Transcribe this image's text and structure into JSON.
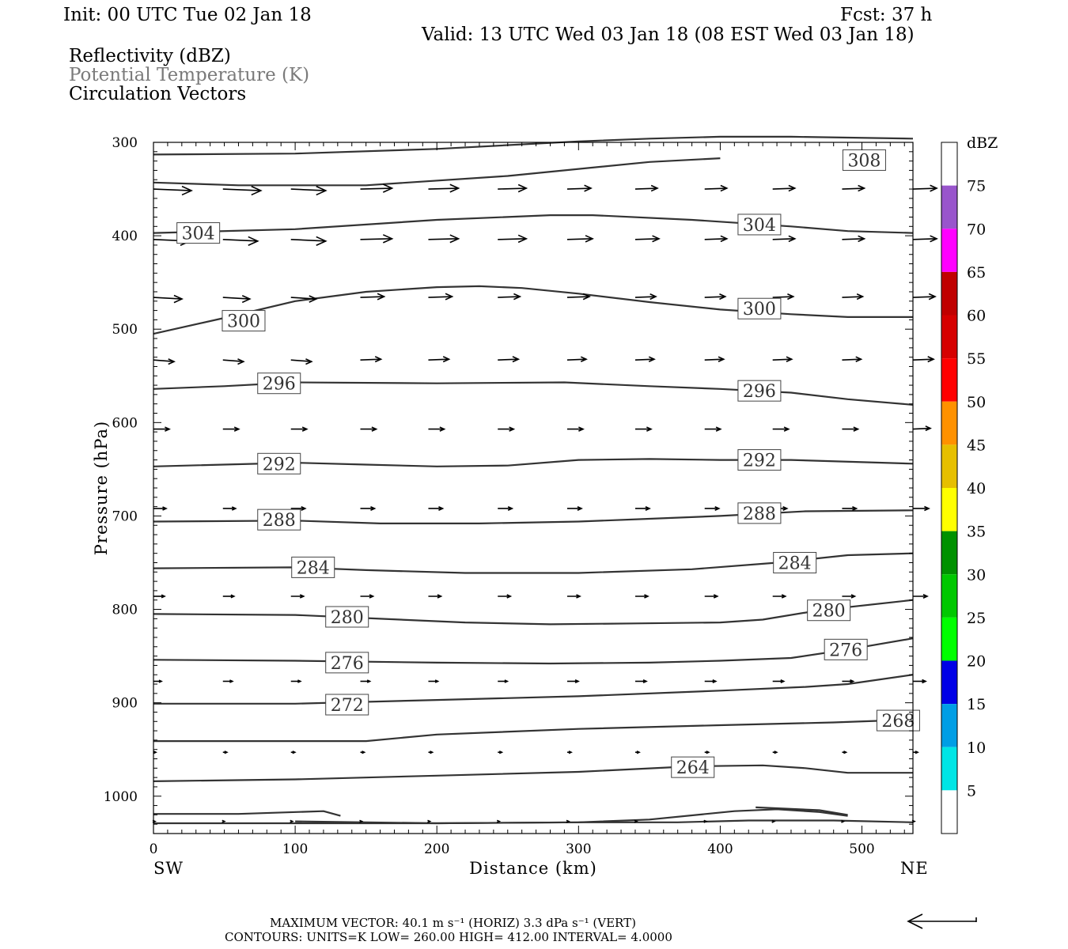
{
  "header": {
    "init": "Init: 00 UTC Tue 02 Jan 18",
    "fcst": "Fcst:   37 h",
    "valid": "Valid: 13 UTC Wed 03 Jan 18 (08 EST Wed 03 Jan 18)",
    "fields": [
      {
        "label": "Reflectivity (dBZ)",
        "color": "#000000"
      },
      {
        "label": "Potential Temperature (K)",
        "color": "#7a7a7a"
      },
      {
        "label": "Circulation Vectors",
        "color": "#000000"
      }
    ]
  },
  "chart_data": {
    "type": "contour cross-section",
    "x_axis": {
      "label": "Distance (km)",
      "range": [
        0,
        536
      ],
      "ticks": [
        0,
        100,
        200,
        300,
        400,
        500
      ],
      "left_end": "SW",
      "right_end": "NE"
    },
    "y_axis": {
      "label": "Pressure (hPa)",
      "range": [
        300,
        1040
      ],
      "inverted": true,
      "ticks": [
        300,
        400,
        500,
        600,
        700,
        800,
        900,
        1000
      ]
    },
    "theta_contours": [
      {
        "label": "308",
        "label_at": [
          486,
          319
        ],
        "pts": [
          [
            0,
            313
          ],
          [
            100,
            312
          ],
          [
            200,
            307
          ],
          [
            300,
            299
          ],
          [
            350,
            296
          ],
          [
            400,
            294
          ],
          [
            450,
            294
          ],
          [
            536,
            296
          ]
        ]
      },
      {
        "label": null,
        "pts": [
          [
            0,
            343
          ],
          [
            60,
            346
          ],
          [
            150,
            346
          ],
          [
            250,
            336
          ],
          [
            350,
            321
          ],
          [
            400,
            317
          ]
        ]
      },
      {
        "label": "304",
        "label_at": [
          16,
          397
        ],
        "pts": [
          [
            0,
            397
          ],
          [
            100,
            393
          ],
          [
            200,
            383
          ],
          [
            280,
            378
          ],
          [
            310,
            378
          ],
          [
            380,
            383
          ],
          [
            450,
            390
          ],
          [
            490,
            395
          ],
          [
            536,
            397
          ]
        ]
      },
      {
        "label": "304",
        "label_at": [
          412,
          388
        ]
      },
      {
        "label": "300",
        "label_at": [
          48,
          491
        ],
        "pts": [
          [
            0,
            505
          ],
          [
            50,
            488
          ],
          [
            100,
            470
          ],
          [
            150,
            460
          ],
          [
            200,
            455
          ],
          [
            230,
            454
          ],
          [
            260,
            456
          ],
          [
            300,
            462
          ],
          [
            350,
            471
          ],
          [
            400,
            479
          ],
          [
            450,
            484
          ],
          [
            490,
            487
          ],
          [
            536,
            487
          ]
        ]
      },
      {
        "label": "300",
        "label_at": [
          412,
          478
        ]
      },
      {
        "label": "296",
        "label_at": [
          73,
          558
        ],
        "pts": [
          [
            0,
            564
          ],
          [
            50,
            561
          ],
          [
            100,
            557
          ],
          [
            200,
            558
          ],
          [
            290,
            557
          ],
          [
            350,
            561
          ],
          [
            400,
            564
          ],
          [
            450,
            568
          ],
          [
            490,
            575
          ],
          [
            536,
            581
          ]
        ]
      },
      {
        "label": "296",
        "label_at": [
          412,
          566
        ]
      },
      {
        "label": "292",
        "label_at": [
          73,
          644
        ],
        "pts": [
          [
            0,
            647
          ],
          [
            100,
            643
          ],
          [
            150,
            645
          ],
          [
            200,
            647
          ],
          [
            250,
            646
          ],
          [
            300,
            640
          ],
          [
            350,
            639
          ],
          [
            400,
            640
          ],
          [
            450,
            640
          ],
          [
            536,
            644
          ]
        ]
      },
      {
        "label": "292",
        "label_at": [
          412,
          640
        ]
      },
      {
        "label": "288",
        "label_at": [
          73,
          704
        ],
        "pts": [
          [
            0,
            706
          ],
          [
            100,
            705
          ],
          [
            160,
            708
          ],
          [
            230,
            708
          ],
          [
            300,
            706
          ],
          [
            350,
            703
          ],
          [
            400,
            700
          ],
          [
            460,
            695
          ],
          [
            536,
            694
          ]
        ]
      },
      {
        "label": "288",
        "label_at": [
          412,
          697
        ]
      },
      {
        "label": "284",
        "label_at": [
          97,
          755
        ],
        "pts": [
          [
            0,
            756
          ],
          [
            100,
            755
          ],
          [
            150,
            758
          ],
          [
            220,
            761
          ],
          [
            300,
            761
          ],
          [
            380,
            757
          ],
          [
            440,
            750
          ],
          [
            490,
            742
          ],
          [
            536,
            740
          ]
        ]
      },
      {
        "label": "284",
        "label_at": [
          437,
          750
        ]
      },
      {
        "label": "280",
        "label_at": [
          121,
          808
        ],
        "pts": [
          [
            0,
            805
          ],
          [
            100,
            806
          ],
          [
            160,
            810
          ],
          [
            220,
            814
          ],
          [
            280,
            816
          ],
          [
            340,
            815
          ],
          [
            400,
            814
          ],
          [
            430,
            811
          ],
          [
            470,
            801
          ],
          [
            536,
            790
          ]
        ]
      },
      {
        "label": "280",
        "label_at": [
          461,
          801
        ]
      },
      {
        "label": "276",
        "label_at": [
          121,
          857
        ],
        "pts": [
          [
            0,
            854
          ],
          [
            100,
            855
          ],
          [
            200,
            857
          ],
          [
            280,
            858
          ],
          [
            350,
            857
          ],
          [
            400,
            855
          ],
          [
            450,
            852
          ],
          [
            490,
            843
          ],
          [
            536,
            831
          ]
        ]
      },
      {
        "label": "276",
        "label_at": [
          473,
          843
        ]
      },
      {
        "label": "272",
        "label_at": [
          121,
          902
        ],
        "pts": [
          [
            0,
            901
          ],
          [
            100,
            901
          ],
          [
            200,
            897
          ],
          [
            300,
            893
          ],
          [
            400,
            887
          ],
          [
            460,
            883
          ],
          [
            490,
            880
          ],
          [
            536,
            870
          ]
        ]
      },
      {
        "label": "268",
        "label_at": [
          510,
          919
        ],
        "pts": [
          [
            0,
            941
          ],
          [
            150,
            941
          ],
          [
            200,
            934
          ],
          [
            300,
            928
          ],
          [
            400,
            924
          ],
          [
            480,
            921
          ],
          [
            536,
            918
          ]
        ]
      },
      {
        "label": "264",
        "label_at": [
          365,
          969
        ],
        "pts": [
          [
            0,
            984
          ],
          [
            100,
            982
          ],
          [
            200,
            978
          ],
          [
            300,
            974
          ],
          [
            380,
            968
          ],
          [
            430,
            967
          ],
          [
            460,
            970
          ],
          [
            490,
            975
          ],
          [
            536,
            975
          ]
        ]
      },
      {
        "label": null,
        "pts": [
          [
            0,
            1019
          ],
          [
            60,
            1019
          ],
          [
            120,
            1016
          ],
          [
            132,
            1021
          ]
        ]
      },
      {
        "label": null,
        "pts": [
          [
            0,
            1029
          ],
          [
            200,
            1029
          ],
          [
            300,
            1028
          ],
          [
            350,
            1025
          ],
          [
            410,
            1016
          ],
          [
            440,
            1014
          ],
          [
            470,
            1017
          ],
          [
            490,
            1021
          ]
        ]
      },
      {
        "label": null,
        "pts": [
          [
            425,
            1012
          ],
          [
            470,
            1015
          ],
          [
            490,
            1020
          ]
        ]
      },
      {
        "label": null,
        "pts": [
          [
            100,
            1027
          ],
          [
            200,
            1029
          ],
          [
            300,
            1028
          ],
          [
            370,
            1028
          ],
          [
            420,
            1026
          ],
          [
            480,
            1026
          ],
          [
            536,
            1028
          ]
        ]
      }
    ],
    "vector_rows": [
      {
        "p": 350,
        "dx": [
          48,
          48,
          44,
          40,
          38,
          36,
          30,
          28,
          28,
          28,
          28,
          30
        ]
      },
      {
        "p": 404,
        "dx": [
          46,
          44,
          44,
          40,
          38,
          36,
          32,
          30,
          28,
          28,
          28,
          30
        ]
      },
      {
        "p": 466,
        "dx": [
          36,
          34,
          32,
          30,
          30,
          28,
          28,
          26,
          26,
          26,
          26,
          28
        ]
      },
      {
        "p": 533,
        "dx": [
          26,
          26,
          26,
          26,
          26,
          26,
          24,
          24,
          24,
          24,
          24,
          26
        ]
      },
      {
        "p": 607,
        "dx": [
          20,
          20,
          20,
          20,
          20,
          20,
          20,
          20,
          20,
          20,
          20,
          22
        ]
      },
      {
        "p": 692,
        "dx": [
          16,
          16,
          18,
          18,
          18,
          18,
          18,
          18,
          18,
          18,
          18,
          20
        ]
      },
      {
        "p": 786,
        "dx": [
          14,
          14,
          16,
          16,
          16,
          16,
          16,
          16,
          16,
          16,
          16,
          18
        ]
      },
      {
        "p": 877,
        "dx": [
          10,
          12,
          12,
          12,
          12,
          12,
          14,
          14,
          14,
          14,
          14,
          16
        ]
      },
      {
        "p": 953,
        "dx": [
          3,
          5,
          5,
          5,
          5,
          5,
          5,
          5,
          5,
          5,
          5,
          6
        ]
      },
      {
        "p": 1027,
        "dx": [
          2,
          2,
          2,
          2,
          2,
          2,
          2,
          2,
          2,
          2,
          2,
          2
        ]
      }
    ],
    "vector_x_km": [
      0,
      49,
      97,
      146,
      194,
      243,
      292,
      340,
      389,
      437,
      486,
      536
    ]
  },
  "colorbar": {
    "unit": "dBZ",
    "levels": [
      "5",
      "10",
      "15",
      "20",
      "25",
      "30",
      "35",
      "40",
      "45",
      "50",
      "55",
      "60",
      "65",
      "70",
      "75"
    ],
    "colors": [
      "#ffffff",
      "#00e5e5",
      "#009ee5",
      "#0000e6",
      "#00ff00",
      "#00c800",
      "#009100",
      "#ffff00",
      "#e6bf00",
      "#ff9100",
      "#ff0000",
      "#d60000",
      "#c00000",
      "#ff00ff",
      "#9955cc",
      "#ffffff"
    ]
  },
  "footer": {
    "max_vector": "MAXIMUM VECTOR:  40.1 m s⁻¹ (HORIZ)        3.3 dPa s⁻¹ (VERT)",
    "contours": "CONTOURS:  UNITS=K  LOW=  260.00      HIGH=  412.00       INTERVAL=    4.0000"
  }
}
